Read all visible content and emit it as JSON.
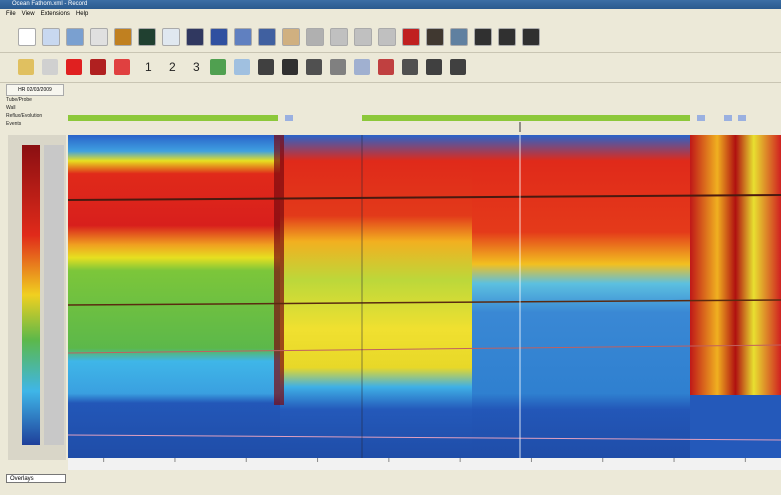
{
  "window": {
    "title": "Ocean Fathom.xml - Record"
  },
  "menu": [
    "File",
    "View",
    "Extensions",
    "Help"
  ],
  "toolbar2_numbers": [
    "1",
    "2",
    "3"
  ],
  "tab": "HR 02/03/2009",
  "rows": [
    "Tube/Probe",
    "Wall",
    "Reflux/Evolution",
    "Events"
  ],
  "footer": {
    "dropdown": "Overlays"
  }
}
